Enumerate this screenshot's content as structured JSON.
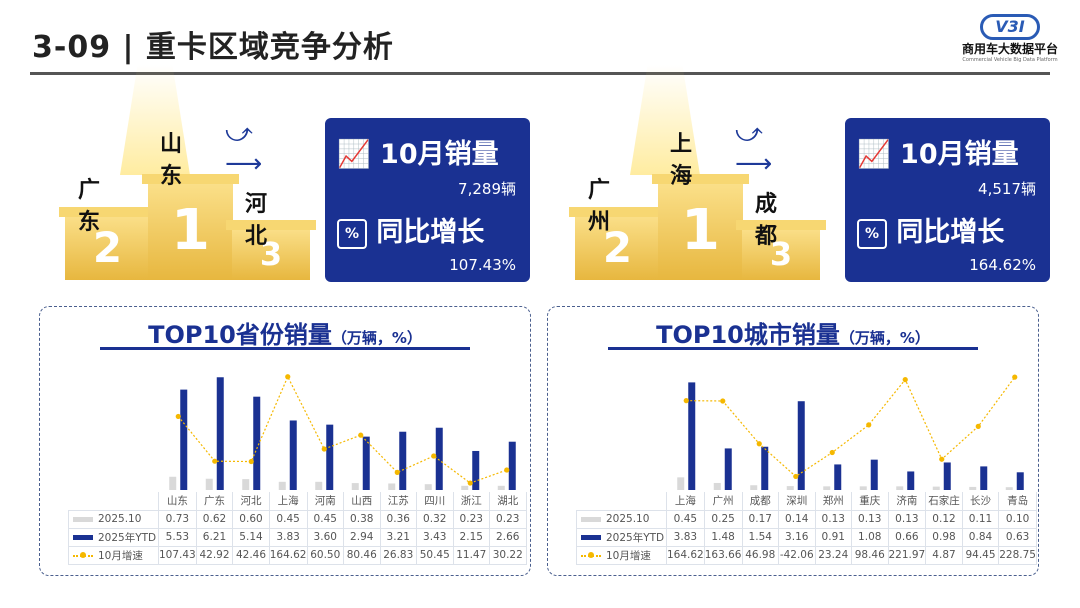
{
  "header": {
    "title": "3-09 | 重卡区域竞争分析",
    "logo_text": "V3I",
    "logo_name": "商用车大数据平台",
    "logo_sub": "Commercial Vehicle Big Data Platform"
  },
  "podiums": [
    {
      "first": "山东",
      "second": "广东",
      "third": "河北",
      "metric_label": "10月销量",
      "metric_value": "7,289辆",
      "growth_label": "同比增长",
      "growth_value": "107.43%"
    },
    {
      "first": "上海",
      "second": "广州",
      "third": "成都",
      "metric_label": "10月销量",
      "metric_value": "4,517辆",
      "growth_label": "同比增长",
      "growth_value": "164.62%"
    }
  ],
  "podium_numbers": {
    "first": "1",
    "second": "2",
    "third": "3"
  },
  "colors": {
    "brand": "#1a3192",
    "gray_bar": "#d9d9d9",
    "line": "#f5b800"
  },
  "chart_data": [
    {
      "type": "bar+line",
      "title": "TOP10省份销量",
      "unit": "（万辆，%）",
      "categories": [
        "山东",
        "广东",
        "河北",
        "上海",
        "河南",
        "山西",
        "江苏",
        "四川",
        "浙江",
        "湖北"
      ],
      "series": [
        {
          "name": "2025.10",
          "type": "bar",
          "values": [
            0.73,
            0.62,
            0.6,
            0.45,
            0.45,
            0.38,
            0.36,
            0.32,
            0.23,
            0.23
          ]
        },
        {
          "name": "2025年YTD",
          "type": "bar",
          "values": [
            5.53,
            6.21,
            5.14,
            3.83,
            3.6,
            2.94,
            3.21,
            3.43,
            2.15,
            2.66
          ]
        },
        {
          "name": "10月增速",
          "type": "line",
          "values": [
            107.43,
            42.92,
            42.46,
            164.62,
            60.5,
            80.46,
            26.83,
            50.45,
            11.47,
            30.22
          ]
        }
      ],
      "bar_ylim": [
        0,
        6.5
      ],
      "line_ylim": [
        0,
        170
      ],
      "grid": false,
      "legend": "table"
    },
    {
      "type": "bar+line",
      "title": "TOP10城市销量",
      "unit": "（万辆，%）",
      "categories": [
        "上海",
        "广州",
        "成都",
        "深圳",
        "郑州",
        "重庆",
        "济南",
        "石家庄",
        "长沙",
        "青岛"
      ],
      "series": [
        {
          "name": "2025.10",
          "type": "bar",
          "values": [
            0.45,
            0.25,
            0.17,
            0.14,
            0.13,
            0.13,
            0.13,
            0.12,
            0.11,
            0.1
          ]
        },
        {
          "name": "2025年YTD",
          "type": "bar",
          "values": [
            3.83,
            1.48,
            1.54,
            3.16,
            0.91,
            1.08,
            0.66,
            0.98,
            0.84,
            0.63
          ]
        },
        {
          "name": "10月增速",
          "type": "line",
          "values": [
            164.62,
            163.66,
            46.98,
            -42.06,
            23.24,
            98.46,
            221.97,
            4.87,
            94.45,
            228.75
          ]
        }
      ],
      "bar_ylim": [
        0,
        4.2
      ],
      "line_ylim": [
        -60,
        240
      ],
      "grid": false,
      "legend": "table"
    }
  ]
}
